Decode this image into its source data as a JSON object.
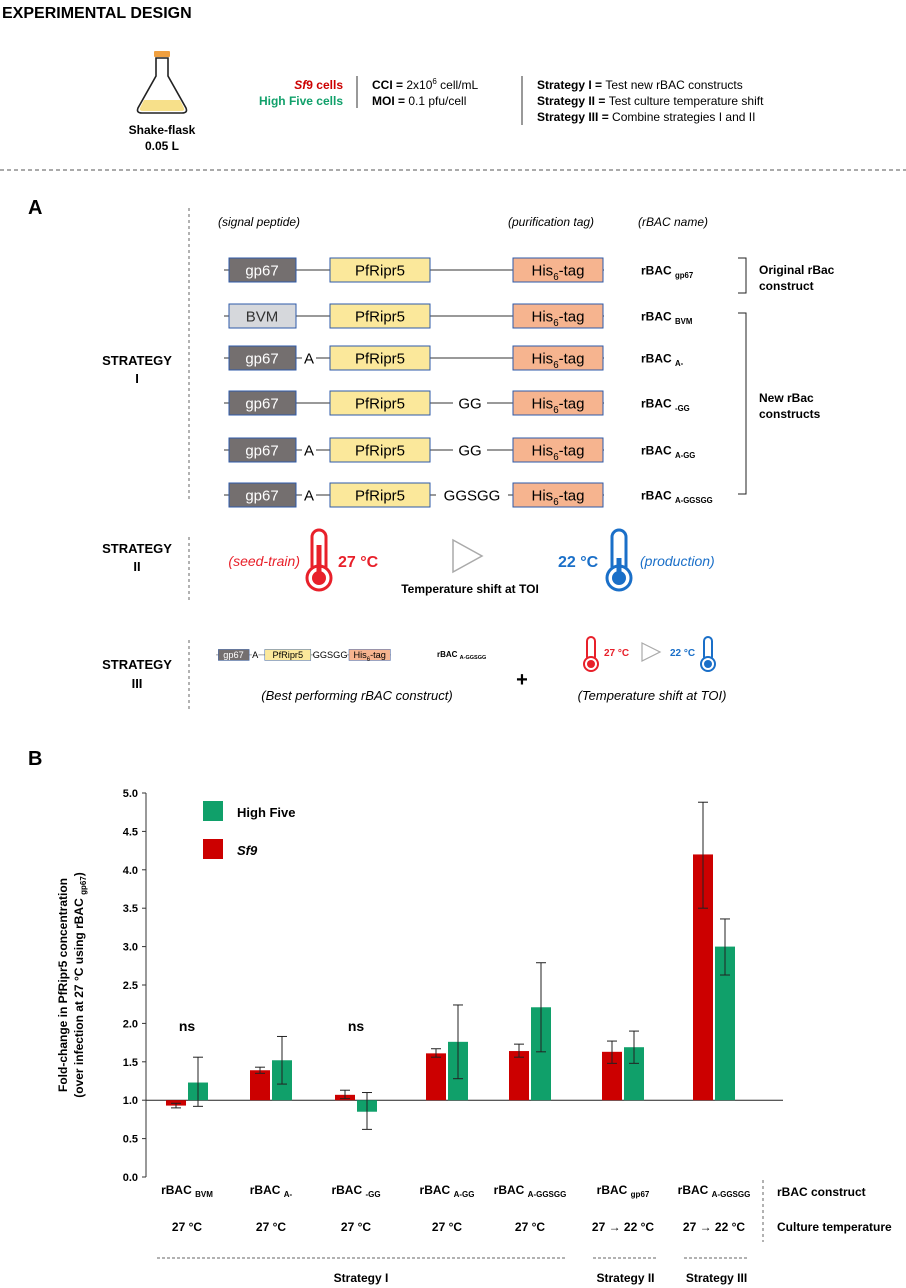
{
  "header": {
    "title": "EXPERIMENTAL DESIGN",
    "flask_label_1": "Shake-flask",
    "flask_label_2": "0.05 L",
    "sf9_cells_sf": "Sf",
    "sf9_cells_rest": "9 cells",
    "high_five_cells": "High Five cells",
    "cci_label": "CCI = ",
    "cci_value_a": "2x10",
    "cci_value_sup": "6",
    "cci_value_b": " cell/mL",
    "moi_label": "MOI = ",
    "moi_value": "0.1 pfu/cell",
    "strategy1_label": "Strategy I = ",
    "strategy1_text": "Test new rBAC constructs",
    "strategy2_label": "Strategy II = ",
    "strategy2_text": "Test culture temperature shift",
    "strategy3_label": "Strategy III = ",
    "strategy3_text": "Combine strategies I and II"
  },
  "panel_a": {
    "letter": "A",
    "col_signal": "(signal peptide)",
    "col_tag": "(purification tag)",
    "col_name": "(rBAC name)",
    "strategy1_line1": "STRATEGY",
    "strategy1_line2": "I",
    "constructs": [
      {
        "signal": "gp67",
        "linker1": "",
        "protein": "PfRipr5",
        "linker2": "",
        "tag_main": "His",
        "tag_sub": "6",
        "tag_end": "-tag",
        "name": "rBAC",
        "name_sub": "gp67"
      },
      {
        "signal": "BVM",
        "linker1": "",
        "protein": "PfRipr5",
        "linker2": "",
        "tag_main": "His",
        "tag_sub": "6",
        "tag_end": "-tag",
        "name": "rBAC",
        "name_sub": "BVM"
      },
      {
        "signal": "gp67",
        "linker1": "A",
        "protein": "PfRipr5",
        "linker2": "",
        "tag_main": "His",
        "tag_sub": "6",
        "tag_end": "-tag",
        "name": "rBAC",
        "name_sub": "A-"
      },
      {
        "signal": "gp67",
        "linker1": "",
        "protein": "PfRipr5",
        "linker2": "GG",
        "tag_main": "His",
        "tag_sub": "6",
        "tag_end": "-tag",
        "name": "rBAC",
        "name_sub": "-GG"
      },
      {
        "signal": "gp67",
        "linker1": "A",
        "protein": "PfRipr5",
        "linker2": "GG",
        "tag_main": "His",
        "tag_sub": "6",
        "tag_end": "-tag",
        "name": "rBAC",
        "name_sub": "A-GG"
      },
      {
        "signal": "gp67",
        "linker1": "A",
        "protein": "PfRipr5",
        "linker2": "GGSGG",
        "tag_main": "His",
        "tag_sub": "6",
        "tag_end": "-tag",
        "name": "rBAC",
        "name_sub": "A-GGSGG"
      }
    ],
    "original_line1": "Original rBac",
    "original_line2": "construct",
    "new_line1": "New rBac",
    "new_line2": "constructs",
    "strategy2_line1": "STRATEGY",
    "strategy2_line2": "II",
    "seed_train": "(seed-train)",
    "temp_27": "27 °C",
    "temp_22": "22 °C",
    "production": "(production)",
    "shift_label": "Temperature shift at TOI",
    "strategy3_line1": "STRATEGY",
    "strategy3_line2": "III",
    "mini": {
      "signal": "gp67",
      "linker1": "A",
      "protein": "PfRipr5",
      "linker2": "GGSGG",
      "tag_main": "His",
      "tag_sub": "6",
      "tag_end": "-tag",
      "name": "rBAC",
      "name_sub": "A-GGSGG"
    },
    "best_caption": "(Best performing rBAC construct)",
    "plus": "+",
    "small_27": "27 °C",
    "small_22": "22 °C",
    "shift_caption": "(Temperature shift at TOI)"
  },
  "colors": {
    "sf9_red": "#cc0000",
    "high_five_green": "#10a06a",
    "gp67_box": "#746f6f",
    "bvm_box": "#d6d8dc",
    "protein_box": "#fbe89b",
    "tag_box": "#f6b48f",
    "box_border": "#2e5aa8",
    "warm_red": "#e8202a",
    "cool_blue": "#1a6fc8"
  },
  "chart_data": {
    "type": "bar",
    "panel_letter": "B",
    "ylabel_line1": "Fold-change in PfRipr5 concentration",
    "ylabel_line2": "(over infection at 27 °C using rBAC ",
    "ylabel_sub": "gp67",
    "ylabel_close": ")",
    "ylim": [
      0,
      5
    ],
    "yticks": [
      "0.0",
      "0.5",
      "1.0",
      "1.5",
      "2.0",
      "2.5",
      "3.0",
      "3.5",
      "4.0",
      "4.5",
      "5.0"
    ],
    "baseline": 1.0,
    "legend_position": "top-left",
    "legend": [
      {
        "name": "High Five",
        "italic": false
      },
      {
        "name": "Sf9",
        "italic": true
      }
    ],
    "categories": [
      {
        "construct": "rBAC",
        "sub": "BVM",
        "temperature": "27 °C"
      },
      {
        "construct": "rBAC",
        "sub": "A-",
        "temperature": "27 °C"
      },
      {
        "construct": "rBAC",
        "sub": "-GG",
        "temperature": "27 °C"
      },
      {
        "construct": "rBAC",
        "sub": "A-GG",
        "temperature": "27 °C"
      },
      {
        "construct": "rBAC",
        "sub": "A-GGSGG",
        "temperature": "27 °C"
      },
      {
        "construct": "rBAC",
        "sub": "gp67",
        "temperature": "27 → 22 °C"
      },
      {
        "construct": "rBAC",
        "sub": "A-GGSGG",
        "temperature": "27 → 22 °C"
      }
    ],
    "series": [
      {
        "name": "Sf9",
        "values": [
          0.93,
          1.39,
          1.07,
          1.61,
          1.64,
          1.63,
          4.2
        ],
        "err_low": [
          0.9,
          1.35,
          1.02,
          1.56,
          1.56,
          1.48,
          3.5
        ],
        "err_high": [
          0.96,
          1.43,
          1.13,
          1.67,
          1.73,
          1.77,
          4.88
        ]
      },
      {
        "name": "High Five",
        "values": [
          1.23,
          1.52,
          0.85,
          1.76,
          2.21,
          1.69,
          3.0
        ],
        "err_low": [
          0.92,
          1.21,
          0.62,
          1.28,
          1.63,
          1.48,
          2.63
        ],
        "err_high": [
          1.56,
          1.83,
          1.1,
          2.24,
          2.79,
          1.9,
          3.36
        ]
      }
    ],
    "annotations": [
      {
        "category_index": 0,
        "text": "ns"
      },
      {
        "category_index": 2,
        "text": "ns"
      }
    ],
    "row_label_construct": "rBAC construct",
    "row_label_temperature": "Culture temperature",
    "groups": [
      {
        "label": "Strategy I",
        "from": 0,
        "to": 4
      },
      {
        "label": "Strategy II",
        "from": 5,
        "to": 5
      },
      {
        "label": "Strategy III",
        "from": 6,
        "to": 6
      }
    ]
  }
}
